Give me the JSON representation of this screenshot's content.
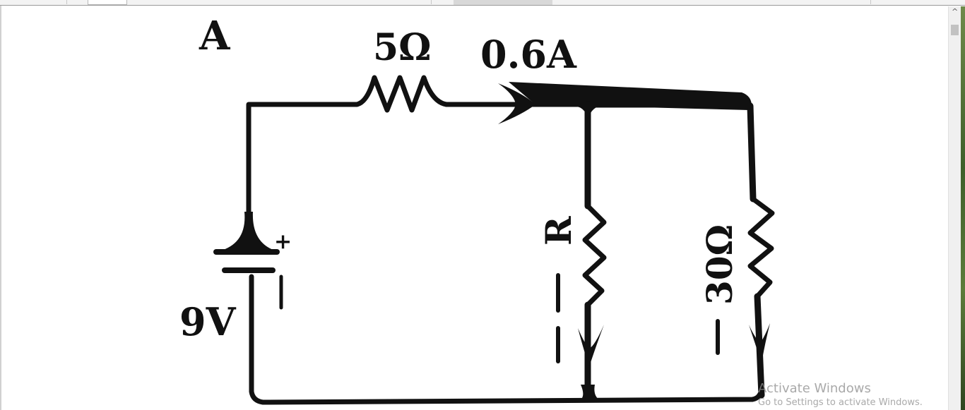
{
  "figure": {
    "corner_label": "A",
    "series_resistor_label": "5Ω",
    "current_label": "0.6A",
    "battery_label": "9V",
    "battery_polarity_symbol": "+",
    "unknown_resistor_label": "R",
    "parallel_resistor_label": "30Ω"
  },
  "watermark": {
    "title": "Activate Windows",
    "subtitle": "Go to Settings to activate Windows."
  },
  "scrollbar": {
    "up_arrow_icon": "chevron-up-icon",
    "up_arrow_glyph": "^"
  },
  "colors": {
    "ink": "#111111",
    "background": "#ffffff",
    "watermark": "#8c8c8c"
  }
}
